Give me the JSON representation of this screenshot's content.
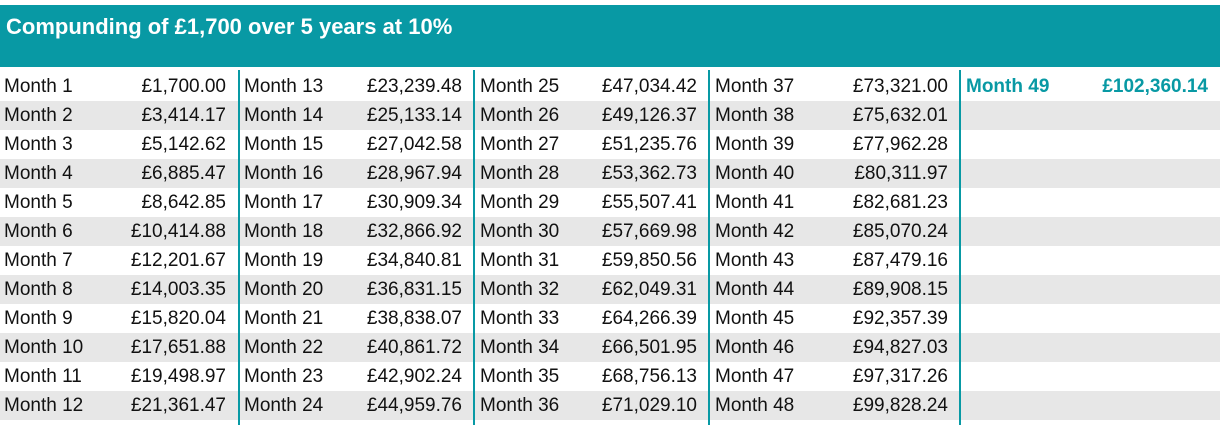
{
  "title": "Compunding of £1,700 over 5 years at 10%",
  "groups": [
    {
      "rows": [
        [
          "Month 1",
          "£1,700.00"
        ],
        [
          "Month 2",
          "£3,414.17"
        ],
        [
          "Month 3",
          "£5,142.62"
        ],
        [
          "Month 4",
          "£6,885.47"
        ],
        [
          "Month 5",
          "£8,642.85"
        ],
        [
          "Month 6",
          "£10,414.88"
        ],
        [
          "Month 7",
          "£12,201.67"
        ],
        [
          "Month 8",
          "£14,003.35"
        ],
        [
          "Month 9",
          "£15,820.04"
        ],
        [
          "Month 10",
          "£17,651.88"
        ],
        [
          "Month 11",
          "£19,498.97"
        ],
        [
          "Month 12",
          "£21,361.47"
        ]
      ]
    },
    {
      "rows": [
        [
          "Month 13",
          "£23,239.48"
        ],
        [
          "Month 14",
          "£25,133.14"
        ],
        [
          "Month 15",
          "£27,042.58"
        ],
        [
          "Month 16",
          "£28,967.94"
        ],
        [
          "Month 17",
          "£30,909.34"
        ],
        [
          "Month 18",
          "£32,866.92"
        ],
        [
          "Month 19",
          "£34,840.81"
        ],
        [
          "Month 20",
          "£36,831.15"
        ],
        [
          "Month 21",
          "£38,838.07"
        ],
        [
          "Month 22",
          "£40,861.72"
        ],
        [
          "Month 23",
          "£42,902.24"
        ],
        [
          "Month 24",
          "£44,959.76"
        ]
      ]
    },
    {
      "rows": [
        [
          "Month 25",
          "£47,034.42"
        ],
        [
          "Month 26",
          "£49,126.37"
        ],
        [
          "Month 27",
          "£51,235.76"
        ],
        [
          "Month 28",
          "£53,362.73"
        ],
        [
          "Month 29",
          "£55,507.41"
        ],
        [
          "Month 30",
          "£57,669.98"
        ],
        [
          "Month 31",
          "£59,850.56"
        ],
        [
          "Month 32",
          "£62,049.31"
        ],
        [
          "Month 33",
          "£64,266.39"
        ],
        [
          "Month 34",
          "£66,501.95"
        ],
        [
          "Month 35",
          "£68,756.13"
        ],
        [
          "Month 36",
          "£71,029.10"
        ]
      ]
    },
    {
      "rows": [
        [
          "Month 37",
          "£73,321.00"
        ],
        [
          "Month 38",
          "£75,632.01"
        ],
        [
          "Month 39",
          "£77,962.28"
        ],
        [
          "Month 40",
          "£80,311.97"
        ],
        [
          "Month 41",
          "£82,681.23"
        ],
        [
          "Month 42",
          "£85,070.24"
        ],
        [
          "Month 43",
          "£87,479.16"
        ],
        [
          "Month 44",
          "£89,908.15"
        ],
        [
          "Month 45",
          "£92,357.39"
        ],
        [
          "Month 46",
          "£94,827.03"
        ],
        [
          "Month 47",
          "£97,317.26"
        ],
        [
          "Month 48",
          "£99,828.24"
        ]
      ]
    },
    {
      "rows": [
        [
          "Month 49",
          "£102,360.14"
        ]
      ]
    }
  ]
}
